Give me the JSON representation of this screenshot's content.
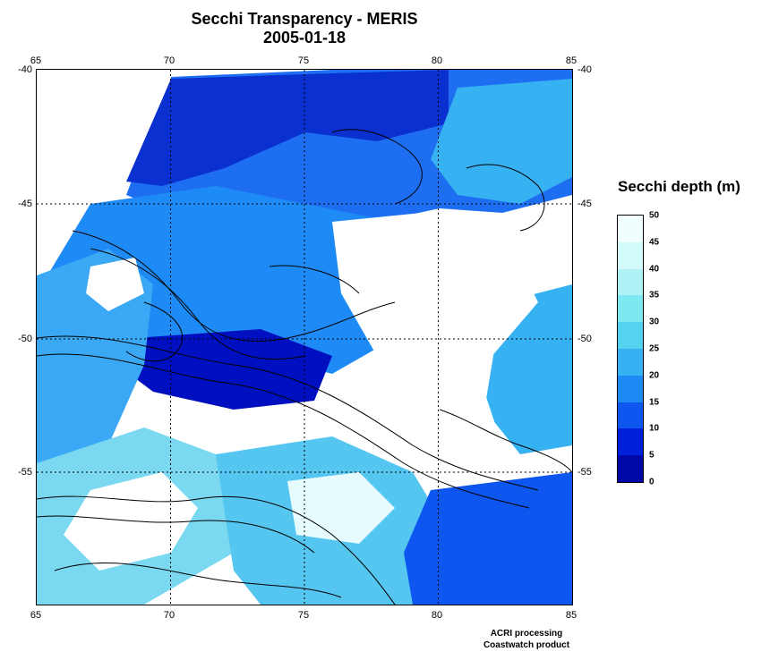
{
  "title": {
    "line1": "Secchi Transparency - MERIS",
    "line2": "2005-01-18"
  },
  "map": {
    "lon_range": [
      65,
      85
    ],
    "lat_range": [
      -60,
      -40
    ],
    "lon_ticks": [
      "65",
      "70",
      "75",
      "80",
      "85"
    ],
    "lat_ticks": [
      "-40",
      "-45",
      "-50",
      "-55"
    ],
    "grid": "dashed"
  },
  "colorbar": {
    "title": "Secchi depth (m)",
    "labels": [
      "50",
      "45",
      "40",
      "35",
      "30",
      "25",
      "20",
      "15",
      "10",
      "5",
      "0"
    ],
    "colors": [
      "#f0fefe",
      "#d2fafa",
      "#aef2f5",
      "#7ee8f0",
      "#54d2f0",
      "#36b1f2",
      "#1e8af5",
      "#0d56f0",
      "#0020dc",
      "#0008a8"
    ]
  },
  "footer": {
    "line1": "ACRI processing",
    "line2": "Coastwatch product"
  }
}
